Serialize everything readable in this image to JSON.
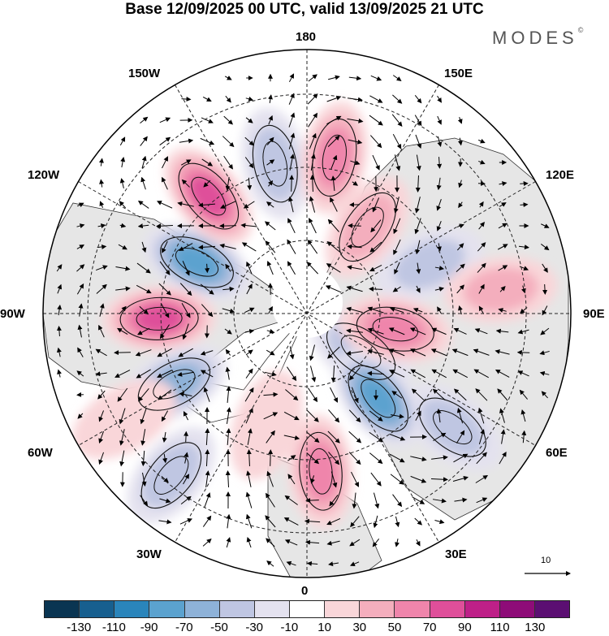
{
  "title": "Base 12/09/2025 00 UTC, valid 13/09/2025 21 UTC",
  "brand": "MODES",
  "brand_mark": "©",
  "lon_labels": {
    "top": "180",
    "bottom": "0",
    "left": "90W",
    "right": "90E",
    "upper_left_150": "150W",
    "upper_left_120": "120W",
    "lower_left_60": "60W",
    "lower_left_30": "30W",
    "upper_right_150": "150E",
    "upper_right_120": "120E",
    "lower_right_60": "60E",
    "lower_right_30": "30E"
  },
  "reference_vector": "10",
  "colorbar": {
    "colors": [
      "#0a3552",
      "#175f8f",
      "#2a85bb",
      "#5ba2cf",
      "#8eb2d8",
      "#bfc6e2",
      "#e4e2ef",
      "#ffffff",
      "#f9d6d9",
      "#f4aebd",
      "#ef85ab",
      "#df4f9a",
      "#be2088",
      "#8e0c78",
      "#5b0f72"
    ],
    "ticks": [
      "-130",
      "-110",
      "-90",
      "-70",
      "-50",
      "-30",
      "-10",
      "10",
      "30",
      "50",
      "70",
      "90",
      "110",
      "130"
    ]
  },
  "anomalies": [
    {
      "lon": -115,
      "r": 0.46,
      "value": -80
    },
    {
      "lon": -140,
      "r": 0.58,
      "value": 70
    },
    {
      "lon": -168,
      "r": 0.58,
      "value": -40
    },
    {
      "lon": 170,
      "r": 0.6,
      "value": 60
    },
    {
      "lon": 145,
      "r": 0.4,
      "value": 40
    },
    {
      "lon": 112,
      "r": 0.5,
      "value": -30
    },
    {
      "lon": 55,
      "r": 0.25,
      "value": -40
    },
    {
      "lon": 97,
      "r": 0.74,
      "value": 30
    },
    {
      "lon": 52,
      "r": 0.7,
      "value": -40
    },
    {
      "lon": 40,
      "r": 0.42,
      "value": -70
    },
    {
      "lon": 80,
      "r": 0.34,
      "value": 50
    },
    {
      "lon": -88,
      "r": 0.56,
      "value": 80
    },
    {
      "lon": -62,
      "r": 0.57,
      "value": -60
    },
    {
      "lon": 5,
      "r": 0.6,
      "value": 50
    },
    {
      "lon": -20,
      "r": 0.45,
      "value": 25
    },
    {
      "lon": -40,
      "r": 0.8,
      "value": -40
    },
    {
      "lon": -60,
      "r": 0.8,
      "value": 20
    }
  ]
}
